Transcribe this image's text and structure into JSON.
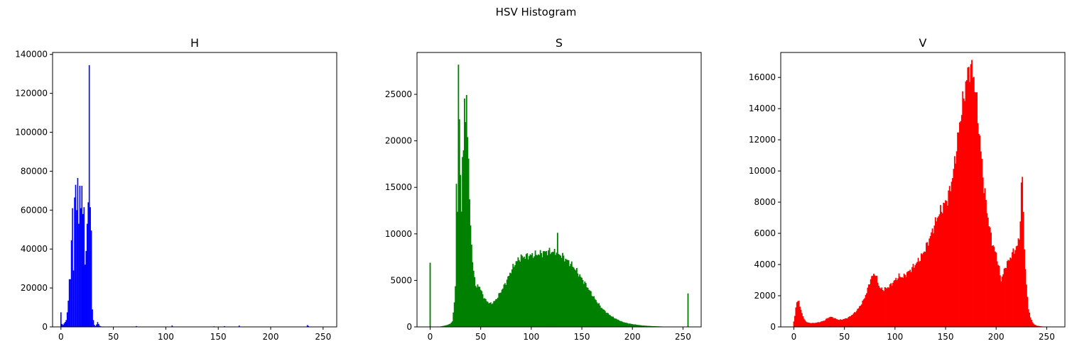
{
  "figure": {
    "title": "HSV Histogram"
  },
  "chart_data": [
    {
      "type": "bar",
      "title": "H",
      "xlabel": "",
      "ylabel": "",
      "color": "#0000ff",
      "xlim": [
        -8,
        263
      ],
      "ylim": [
        0,
        141000
      ],
      "xticks": [
        0,
        50,
        100,
        150,
        200,
        250
      ],
      "yticks": [
        0,
        20000,
        40000,
        60000,
        80000,
        100000,
        120000,
        140000
      ],
      "points": [
        [
          0,
          7500
        ],
        [
          1,
          1500
        ],
        [
          2,
          1000
        ],
        [
          3,
          1800
        ],
        [
          4,
          2500
        ],
        [
          5,
          3500
        ],
        [
          6,
          7500
        ],
        [
          7,
          13500
        ],
        [
          8,
          24500
        ],
        [
          9,
          24500
        ],
        [
          10,
          44500
        ],
        [
          11,
          61000
        ],
        [
          12,
          29000
        ],
        [
          13,
          66500
        ],
        [
          14,
          73000
        ],
        [
          15,
          60000
        ],
        [
          16,
          76500
        ],
        [
          17,
          53000
        ],
        [
          18,
          72500
        ],
        [
          19,
          61000
        ],
        [
          20,
          72500
        ],
        [
          21,
          58000
        ],
        [
          22,
          61500
        ],
        [
          23,
          32000
        ],
        [
          24,
          39000
        ],
        [
          25,
          53000
        ],
        [
          26,
          64000
        ],
        [
          27,
          134500
        ],
        [
          28,
          61500
        ],
        [
          29,
          49500
        ],
        [
          30,
          9000
        ],
        [
          31,
          3500
        ],
        [
          32,
          1000
        ],
        [
          33,
          500
        ],
        [
          34,
          1300
        ],
        [
          35,
          2500
        ],
        [
          36,
          1500
        ],
        [
          37,
          600
        ],
        [
          38,
          300
        ],
        [
          40,
          200
        ],
        [
          45,
          150
        ],
        [
          50,
          100
        ],
        [
          60,
          100
        ],
        [
          72,
          400
        ],
        [
          90,
          100
        ],
        [
          106,
          700
        ],
        [
          120,
          100
        ],
        [
          146,
          300
        ],
        [
          156,
          400
        ],
        [
          170,
          700
        ],
        [
          190,
          100
        ],
        [
          210,
          100
        ],
        [
          235,
          900
        ],
        [
          236,
          500
        ]
      ]
    },
    {
      "type": "bar",
      "title": "S",
      "xlabel": "",
      "ylabel": "",
      "color": "#008000",
      "xlim": [
        -13,
        268
      ],
      "ylim": [
        0,
        29500
      ],
      "xticks": [
        0,
        50,
        100,
        150,
        200,
        250
      ],
      "yticks": [
        0,
        5000,
        10000,
        15000,
        20000,
        25000
      ],
      "profile": [
        [
          0,
          6900
        ],
        [
          1,
          0
        ],
        [
          10,
          40
        ],
        [
          15,
          150
        ],
        [
          18,
          250
        ],
        [
          20,
          350
        ],
        [
          22,
          600
        ],
        [
          24,
          2500
        ],
        [
          25,
          4500
        ],
        [
          26,
          16000
        ],
        [
          27,
          12000
        ],
        [
          28,
          28100
        ],
        [
          29,
          22000
        ],
        [
          30,
          16500
        ],
        [
          31,
          13000
        ],
        [
          32,
          17500
        ],
        [
          33,
          18500
        ],
        [
          34,
          25500
        ],
        [
          35,
          22000
        ],
        [
          36,
          25200
        ],
        [
          37,
          20000
        ],
        [
          38,
          17500
        ],
        [
          39,
          14500
        ],
        [
          40,
          11000
        ],
        [
          41,
          8500
        ],
        [
          42,
          7000
        ],
        [
          43,
          6000
        ],
        [
          44,
          5500
        ],
        [
          45,
          4500
        ],
        [
          46,
          4000
        ],
        [
          47,
          4600
        ],
        [
          48,
          4500
        ],
        [
          50,
          4000
        ],
        [
          52,
          3500
        ],
        [
          54,
          3000
        ],
        [
          56,
          2800
        ],
        [
          58,
          2600
        ],
        [
          60,
          2500
        ],
        [
          62,
          2600
        ],
        [
          65,
          2900
        ],
        [
          70,
          3800
        ],
        [
          75,
          4800
        ],
        [
          80,
          6000
        ],
        [
          85,
          7000
        ],
        [
          90,
          7500
        ],
        [
          95,
          7600
        ],
        [
          100,
          7700
        ],
        [
          105,
          7800
        ],
        [
          110,
          7900
        ],
        [
          115,
          8100
        ],
        [
          120,
          8100
        ],
        [
          124,
          8000
        ],
        [
          125,
          8300
        ],
        [
          126,
          9700
        ],
        [
          127,
          7800
        ],
        [
          130,
          7700
        ],
        [
          135,
          7200
        ],
        [
          140,
          6700
        ],
        [
          145,
          6000
        ],
        [
          150,
          5200
        ],
        [
          155,
          4400
        ],
        [
          160,
          3500
        ],
        [
          165,
          2700
        ],
        [
          170,
          2000
        ],
        [
          175,
          1500
        ],
        [
          180,
          1100
        ],
        [
          185,
          800
        ],
        [
          190,
          550
        ],
        [
          195,
          400
        ],
        [
          200,
          300
        ],
        [
          210,
          150
        ],
        [
          220,
          80
        ],
        [
          230,
          40
        ],
        [
          240,
          25
        ],
        [
          250,
          20
        ],
        [
          254,
          20
        ],
        [
          255,
          3600
        ]
      ]
    },
    {
      "type": "bar",
      "title": "V",
      "xlabel": "",
      "ylabel": "",
      "color": "#ff0000",
      "xlim": [
        -13,
        268
      ],
      "ylim": [
        0,
        17600
      ],
      "xticks": [
        0,
        50,
        100,
        150,
        200,
        250
      ],
      "yticks": [
        0,
        2000,
        4000,
        6000,
        8000,
        10000,
        12000,
        14000,
        16000
      ],
      "profile": [
        [
          0,
          350
        ],
        [
          1,
          700
        ],
        [
          2,
          1200
        ],
        [
          3,
          1650
        ],
        [
          4,
          1700
        ],
        [
          5,
          1600
        ],
        [
          6,
          1300
        ],
        [
          8,
          900
        ],
        [
          10,
          500
        ],
        [
          13,
          300
        ],
        [
          16,
          250
        ],
        [
          20,
          250
        ],
        [
          25,
          300
        ],
        [
          30,
          400
        ],
        [
          33,
          550
        ],
        [
          36,
          650
        ],
        [
          39,
          600
        ],
        [
          42,
          500
        ],
        [
          45,
          450
        ],
        [
          48,
          480
        ],
        [
          52,
          550
        ],
        [
          55,
          650
        ],
        [
          60,
          900
        ],
        [
          64,
          1200
        ],
        [
          68,
          1600
        ],
        [
          72,
          2200
        ],
        [
          75,
          2900
        ],
        [
          78,
          3300
        ],
        [
          80,
          3450
        ],
        [
          82,
          3100
        ],
        [
          85,
          2500
        ],
        [
          88,
          2400
        ],
        [
          92,
          2500
        ],
        [
          96,
          2700
        ],
        [
          100,
          3000
        ],
        [
          104,
          3250
        ],
        [
          108,
          3200
        ],
        [
          112,
          3450
        ],
        [
          116,
          3700
        ],
        [
          120,
          4000
        ],
        [
          125,
          4400
        ],
        [
          130,
          5000
        ],
        [
          135,
          5800
        ],
        [
          140,
          6700
        ],
        [
          143,
          7200
        ],
        [
          146,
          7500
        ],
        [
          149,
          7900
        ],
        [
          152,
          8200
        ],
        [
          155,
          9000
        ],
        [
          158,
          10000
        ],
        [
          160,
          11000
        ],
        [
          162,
          12000
        ],
        [
          164,
          13000
        ],
        [
          166,
          14000
        ],
        [
          168,
          14600
        ],
        [
          170,
          15600
        ],
        [
          172,
          16200
        ],
        [
          174,
          16700
        ],
        [
          176,
          16500
        ],
        [
          178,
          16000
        ],
        [
          180,
          15000
        ],
        [
          182,
          13500
        ],
        [
          184,
          12000
        ],
        [
          186,
          10500
        ],
        [
          188,
          9000
        ],
        [
          190,
          8000
        ],
        [
          192,
          7000
        ],
        [
          194,
          6200
        ],
        [
          196,
          5500
        ],
        [
          198,
          5000
        ],
        [
          200,
          4700
        ],
        [
          203,
          3700
        ],
        [
          205,
          3000
        ],
        [
          207,
          3400
        ],
        [
          210,
          4000
        ],
        [
          213,
          4300
        ],
        [
          216,
          4700
        ],
        [
          219,
          5000
        ],
        [
          221,
          5200
        ],
        [
          223,
          5800
        ],
        [
          224,
          7000
        ],
        [
          225,
          8800
        ],
        [
          226,
          9600
        ],
        [
          227,
          7500
        ],
        [
          228,
          5000
        ],
        [
          230,
          2600
        ],
        [
          232,
          1200
        ],
        [
          234,
          600
        ],
        [
          236,
          300
        ],
        [
          238,
          150
        ],
        [
          240,
          80
        ],
        [
          245,
          30
        ],
        [
          250,
          15
        ],
        [
          255,
          10
        ]
      ]
    }
  ]
}
